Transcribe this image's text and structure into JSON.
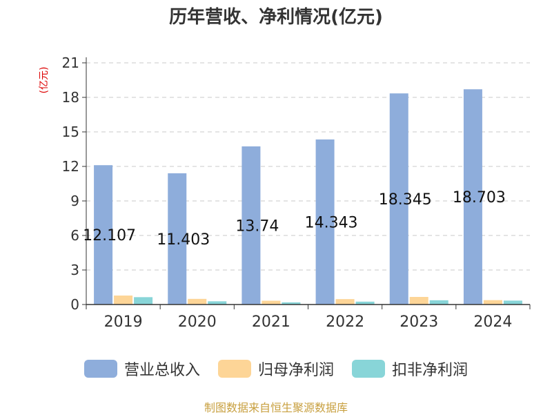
{
  "chart_data": {
    "type": "bar",
    "title": "历年营收、净利情况(亿元)",
    "ylabel": "(亿元)",
    "xlabel": "",
    "ylim": [
      0,
      21
    ],
    "yticks": [
      0,
      3,
      6,
      9,
      12,
      15,
      18,
      21
    ],
    "grid": true,
    "legend_position": "bottom",
    "categories": [
      "2019",
      "2020",
      "2021",
      "2022",
      "2023",
      "2024"
    ],
    "series": [
      {
        "name": "营业总收入",
        "color": "#8eaddb",
        "values": [
          12.107,
          11.403,
          13.74,
          14.343,
          18.345,
          18.703
        ],
        "labels": [
          "12.107",
          "11.403",
          "13.74",
          "14.343",
          "18.345",
          "18.703"
        ]
      },
      {
        "name": "归母净利润",
        "color": "#fdd597",
        "values": [
          0.78,
          0.49,
          0.33,
          0.47,
          0.66,
          0.38
        ]
      },
      {
        "name": "扣非净利润",
        "color": "#88d5d8",
        "values": [
          0.64,
          0.28,
          0.19,
          0.25,
          0.37,
          0.34
        ]
      }
    ]
  },
  "source": "制图数据来自恒生聚源数据库"
}
